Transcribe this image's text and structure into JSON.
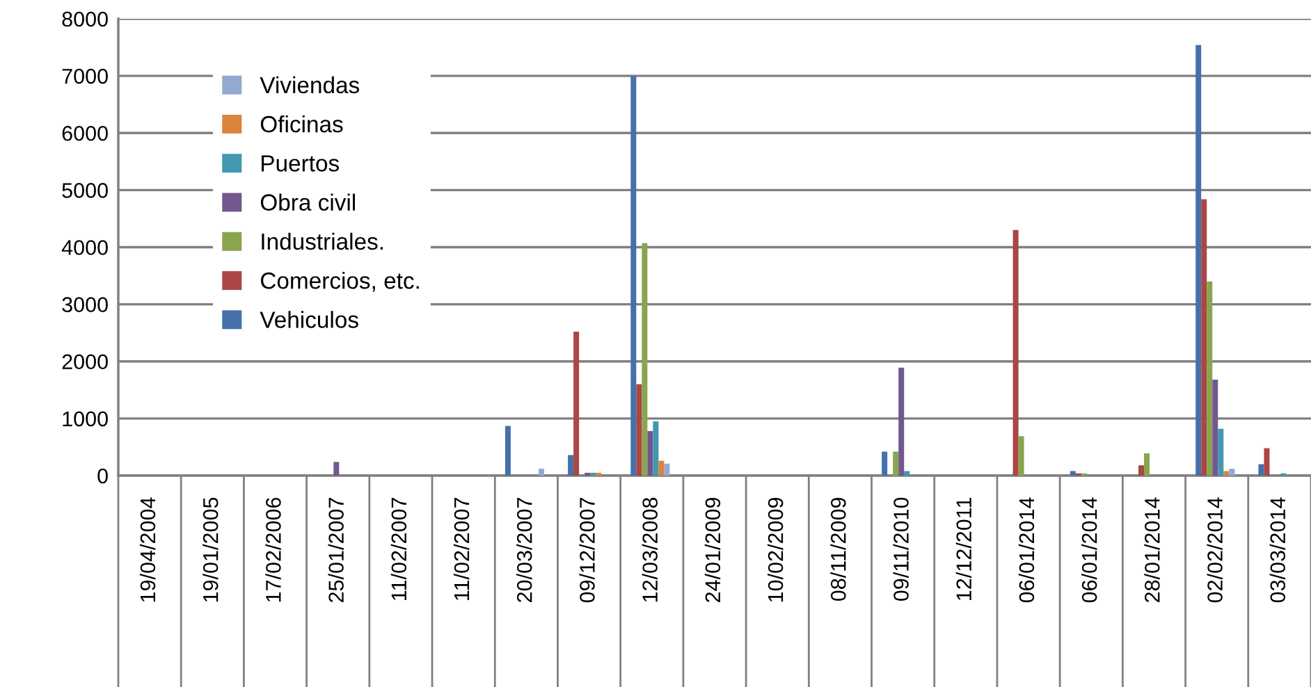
{
  "chart_data": {
    "type": "bar",
    "categories": [
      "19/04/2004",
      "19/01/2005",
      "17/02/2006",
      "25/01/2007",
      "11/02/2007",
      "11/02/2007",
      "20/03/2007",
      "09/12/2007",
      "12/03/2008",
      "24/01/2009",
      "10/02/2009",
      "08/11/2009",
      "09/11/2010",
      "12/12/2011",
      "06/01/2014",
      "06/01/2014",
      "28/01/2014",
      "02/02/2014",
      "03/03/2014"
    ],
    "series": [
      {
        "name": "Vehiculos",
        "color": "#4570aa",
        "values": [
          null,
          null,
          null,
          null,
          null,
          null,
          870,
          360,
          7000,
          null,
          null,
          null,
          420,
          null,
          null,
          80,
          null,
          7540,
          200
        ]
      },
      {
        "name": "Comercios, etc.",
        "color": "#aa4644",
        "values": [
          null,
          null,
          null,
          null,
          null,
          null,
          null,
          2520,
          1600,
          null,
          null,
          null,
          null,
          null,
          4300,
          40,
          180,
          4840,
          480
        ]
      },
      {
        "name": "Industriales.",
        "color": "#89a54e",
        "values": [
          null,
          null,
          null,
          null,
          null,
          null,
          null,
          null,
          4070,
          null,
          null,
          null,
          420,
          null,
          690,
          40,
          390,
          3400,
          null
        ]
      },
      {
        "name": "Obra civil",
        "color": "#71588f",
        "values": [
          null,
          null,
          null,
          240,
          null,
          null,
          null,
          50,
          780,
          null,
          null,
          null,
          1890,
          null,
          null,
          null,
          null,
          1680,
          null
        ]
      },
      {
        "name": "Puertos",
        "color": "#4198af",
        "values": [
          null,
          null,
          null,
          null,
          null,
          null,
          null,
          50,
          950,
          null,
          null,
          null,
          80,
          null,
          null,
          null,
          null,
          820,
          40
        ]
      },
      {
        "name": "Oficinas",
        "color": "#db843d",
        "values": [
          null,
          null,
          null,
          null,
          null,
          null,
          null,
          50,
          260,
          null,
          null,
          null,
          null,
          null,
          null,
          null,
          null,
          80,
          null
        ]
      },
      {
        "name": "Viviendas",
        "color": "#93a9cf",
        "values": [
          null,
          null,
          null,
          null,
          null,
          null,
          120,
          null,
          210,
          null,
          null,
          null,
          null,
          null,
          null,
          null,
          null,
          120,
          null
        ]
      }
    ],
    "ylim": [
      0,
      8000
    ],
    "yticks": [
      0,
      1000,
      2000,
      3000,
      4000,
      5000,
      6000,
      7000,
      8000
    ],
    "grid": "y",
    "legend": "top left"
  }
}
